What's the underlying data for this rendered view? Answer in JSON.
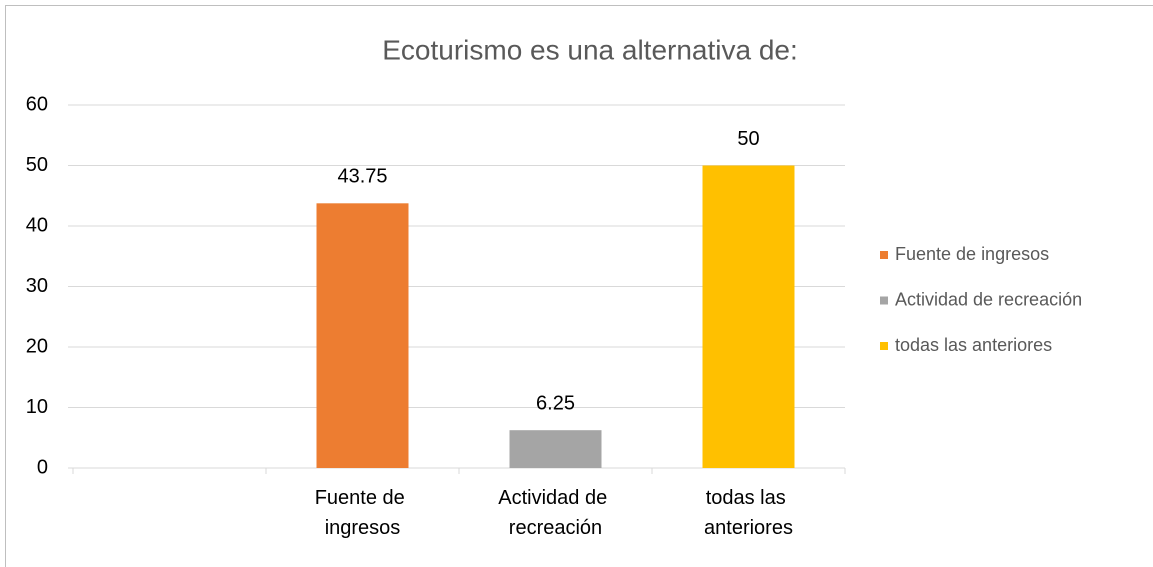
{
  "chart_data": {
    "type": "bar",
    "title": "Ecoturismo es una alternativa de:",
    "categories": [
      null,
      "Fuente de ingresos",
      "Actividad de recreación",
      "todas las anteriores"
    ],
    "values": [
      null,
      43.75,
      6.25,
      50
    ],
    "colors": [
      null,
      "#ed7d31",
      "#a5a5a5",
      "#ffc000"
    ],
    "ylim": [
      0,
      60
    ],
    "yticks": [
      0,
      10,
      20,
      30,
      40,
      50,
      60
    ],
    "grid": true,
    "legend": "right"
  }
}
